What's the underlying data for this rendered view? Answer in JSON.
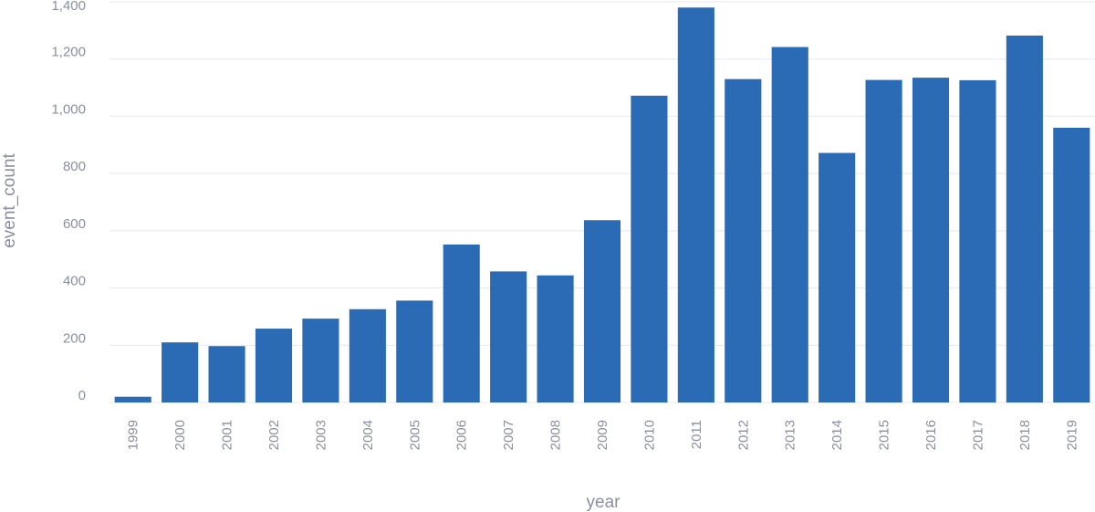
{
  "chart_data": {
    "type": "bar",
    "categories": [
      "1999",
      "2000",
      "2001",
      "2002",
      "2003",
      "2004",
      "2005",
      "2006",
      "2007",
      "2008",
      "2009",
      "2010",
      "2011",
      "2012",
      "2013",
      "2014",
      "2015",
      "2016",
      "2017",
      "2018",
      "2019"
    ],
    "values": [
      20,
      210,
      197,
      258,
      293,
      326,
      356,
      552,
      458,
      444,
      637,
      1072,
      1380,
      1130,
      1242,
      872,
      1127,
      1135,
      1126,
      1282,
      960
    ],
    "xlabel": "year",
    "ylabel": "event_count",
    "ylim": [
      0,
      1400
    ],
    "yticks": [
      0,
      200,
      400,
      600,
      800,
      1000,
      1200,
      1400
    ],
    "ytick_labels": [
      "0",
      "200",
      "400",
      "600",
      "800",
      "1,000",
      "1,200",
      "1,400"
    ],
    "grid": true,
    "bar_color": "#2b6ab4"
  }
}
